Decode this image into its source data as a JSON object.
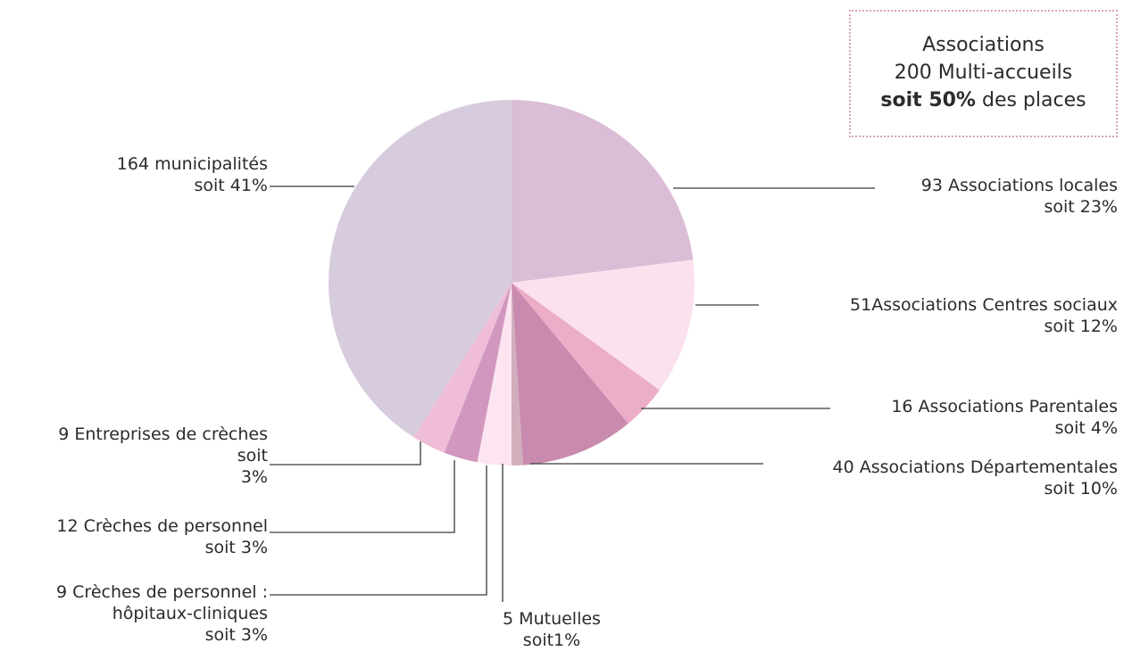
{
  "chart_data": {
    "type": "pie",
    "slices": [
      {
        "label_lines": [
          "93 Associations locales",
          "soit 23%"
        ],
        "value": 23,
        "color": "#dbbdd7"
      },
      {
        "label_lines": [
          "51Associations Centres sociaux",
          "soit 12%"
        ],
        "value": 12,
        "color": "#fbe1ee"
      },
      {
        "label_lines": [
          "16 Associations Parentales",
          "soit 4%"
        ],
        "value": 4,
        "color": "#ebadc8"
      },
      {
        "label_lines": [
          "40 Associations Départementales",
          "soit 10%"
        ],
        "value": 10,
        "color": "#c88aaf"
      },
      {
        "label_lines": [
          "5 Mutuelles",
          "soit1%"
        ],
        "value": 1,
        "color": "#d2aebd"
      },
      {
        "label_lines": [
          "9 Crèches de personnel :",
          "hôpitaux-cliniques",
          "soit 3%"
        ],
        "value": 3,
        "color": "#fce5f0"
      },
      {
        "label_lines": [
          "12 Crèches de personnel",
          "soit 3%"
        ],
        "value": 3,
        "color": "#d197bf"
      },
      {
        "label_lines": [
          "9 Entreprises de crèches",
          "soit",
          "3%"
        ],
        "value": 3,
        "color": "#efbdd8"
      },
      {
        "label_lines": [
          "164 municipalités",
          "soit 41%"
        ],
        "value": 41,
        "color": "#d7ccdd"
      }
    ]
  },
  "note_box": {
    "line1": "Associations",
    "line2": "200 Multi-accueils",
    "line3_bold": "soit 50%",
    "line3_rest": " des places"
  }
}
